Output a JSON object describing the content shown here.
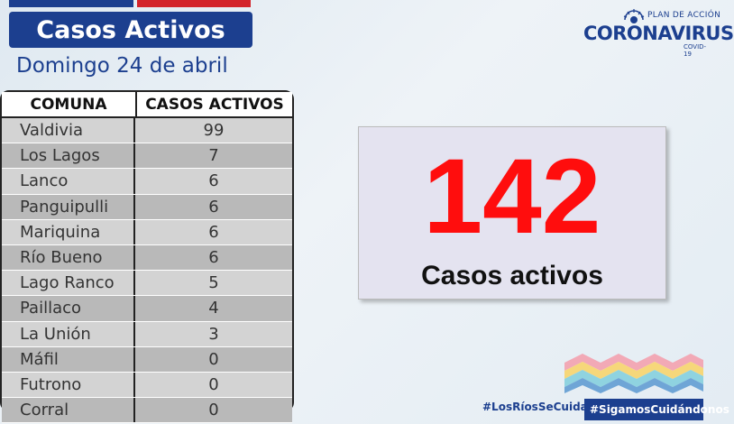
{
  "header": {
    "title": "Casos Activos",
    "date": "Domingo 24 de abril"
  },
  "table": {
    "columns": [
      "COMUNA",
      "CASOS ACTIVOS"
    ],
    "rows": [
      {
        "comuna": "Valdivia",
        "casos": "99"
      },
      {
        "comuna": "Los Lagos",
        "casos": "7"
      },
      {
        "comuna": "Lanco",
        "casos": "6"
      },
      {
        "comuna": "Panguipulli",
        "casos": "6"
      },
      {
        "comuna": "Mariquina",
        "casos": "6"
      },
      {
        "comuna": "Río Bueno",
        "casos": "6"
      },
      {
        "comuna": "Lago Ranco",
        "casos": "5"
      },
      {
        "comuna": "Paillaco",
        "casos": "4"
      },
      {
        "comuna": "La Unión",
        "casos": "3"
      },
      {
        "comuna": "Máfil",
        "casos": "0"
      },
      {
        "comuna": "Futrono",
        "casos": "0"
      },
      {
        "comuna": "Corral",
        "casos": "0"
      }
    ]
  },
  "total": {
    "value": "142",
    "label": "Casos activos"
  },
  "logo": {
    "plan": "PLAN DE ACCIÓN",
    "name": "CORONAVIRUS",
    "sub": "COVID-19"
  },
  "footer": {
    "hashtag1": "#LosRíosSeCuida",
    "hashtag2": "#SigamosCuidándonos"
  },
  "colors": {
    "brand_blue": "#1c3f8f",
    "accent_red": "#d3232a",
    "total_red": "#ff0d0d"
  }
}
